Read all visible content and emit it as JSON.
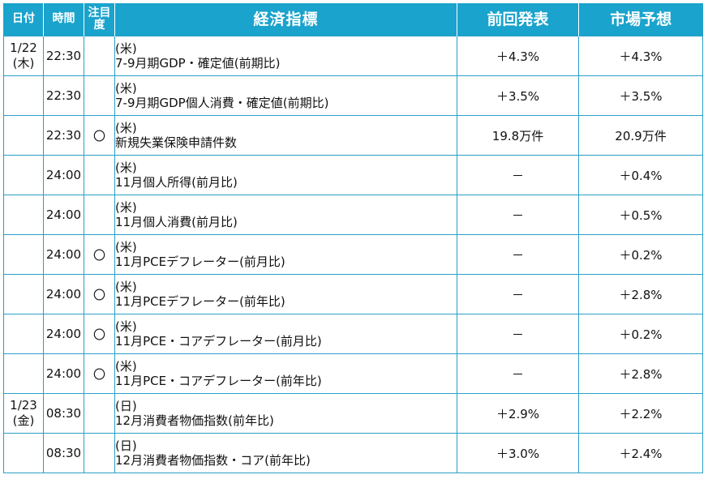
{
  "header": {
    "date": "日付",
    "time": "時間",
    "note": "注目度",
    "indicator": "経済指標",
    "previous": "前回発表",
    "forecast": "市場予想"
  },
  "rows": [
    {
      "date": "1/22",
      "weekday": "(木)",
      "time": "22:30",
      "mark": "",
      "country": "(米)",
      "name": "7-9月期GDP・確定値(前期比)",
      "previous": "＋4.3%",
      "forecast": "＋4.3%"
    },
    {
      "date": "",
      "weekday": "",
      "time": "22:30",
      "mark": "",
      "country": "(米)",
      "name": "7-9月期GDP個人消費・確定値(前期比)",
      "previous": "＋3.5%",
      "forecast": "＋3.5%"
    },
    {
      "date": "",
      "weekday": "",
      "time": "22:30",
      "mark": "〇",
      "country": "(米)",
      "name": "新規失業保険申請件数",
      "previous": "19.8万件",
      "forecast": "20.9万件"
    },
    {
      "date": "",
      "weekday": "",
      "time": "24:00",
      "mark": "",
      "country": "(米)",
      "name": "11月個人所得(前月比)",
      "previous": "－",
      "forecast": "＋0.4%"
    },
    {
      "date": "",
      "weekday": "",
      "time": "24:00",
      "mark": "",
      "country": "(米)",
      "name": "11月個人消費(前月比)",
      "previous": "－",
      "forecast": "＋0.5%"
    },
    {
      "date": "",
      "weekday": "",
      "time": "24:00",
      "mark": "〇",
      "country": "(米)",
      "name": "11月PCEデフレーター(前月比)",
      "previous": "－",
      "forecast": "＋0.2%"
    },
    {
      "date": "",
      "weekday": "",
      "time": "24:00",
      "mark": "〇",
      "country": "(米)",
      "name": "11月PCEデフレーター(前年比)",
      "previous": "－",
      "forecast": "＋2.8%"
    },
    {
      "date": "",
      "weekday": "",
      "time": "24:00",
      "mark": "〇",
      "country": "(米)",
      "name": "11月PCE・コアデフレーター(前月比)",
      "previous": "－",
      "forecast": "＋0.2%"
    },
    {
      "date": "",
      "weekday": "",
      "time": "24:00",
      "mark": "〇",
      "country": "(米)",
      "name": "11月PCE・コアデフレーター(前年比)",
      "previous": "－",
      "forecast": "＋2.8%"
    },
    {
      "date": "1/23",
      "weekday": "(金)",
      "time": "08:30",
      "mark": "",
      "country": "(日)",
      "name": "12月消費者物価指数(前年比)",
      "previous": "＋2.9%",
      "forecast": "＋2.2%"
    },
    {
      "date": "",
      "weekday": "",
      "time": "08:30",
      "mark": "",
      "country": "(日)",
      "name": "12月消費者物価指数・コア(前年比)",
      "previous": "＋3.0%",
      "forecast": "＋2.4%"
    }
  ]
}
